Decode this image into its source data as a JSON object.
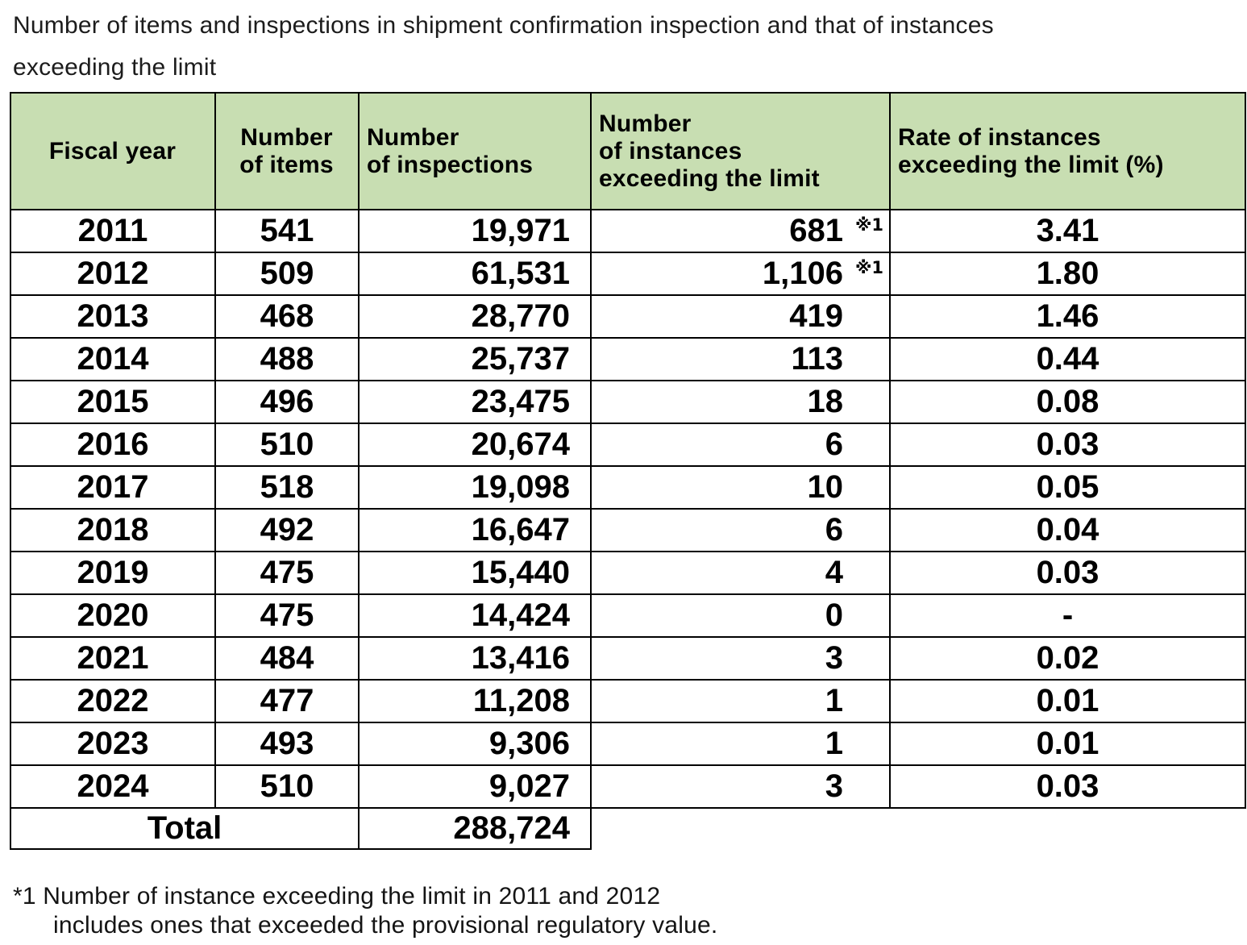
{
  "title": {
    "lines": [
      "Number of items and inspections in shipment confirmation inspection and that of instances",
      "exceeding the limit"
    ]
  },
  "table": {
    "columns": [
      "Fiscal year",
      "Number\nof items",
      "Number\nof inspections",
      "Number\nof instances\nexceeding the limit",
      "Rate of instances\nexceeding the limit (%)"
    ],
    "rows": [
      {
        "fiscal_year": "2011",
        "items": "541",
        "inspections": "19,971",
        "instances": "681",
        "note": "※1",
        "rate": "3.41"
      },
      {
        "fiscal_year": "2012",
        "items": "509",
        "inspections": "61,531",
        "instances": "1,106",
        "note": "※1",
        "rate": "1.80"
      },
      {
        "fiscal_year": "2013",
        "items": "468",
        "inspections": "28,770",
        "instances": "419",
        "note": "",
        "rate": "1.46"
      },
      {
        "fiscal_year": "2014",
        "items": "488",
        "inspections": "25,737",
        "instances": "113",
        "note": "",
        "rate": "0.44"
      },
      {
        "fiscal_year": "2015",
        "items": "496",
        "inspections": "23,475",
        "instances": "18",
        "note": "",
        "rate": "0.08"
      },
      {
        "fiscal_year": "2016",
        "items": "510",
        "inspections": "20,674",
        "instances": "6",
        "note": "",
        "rate": "0.03"
      },
      {
        "fiscal_year": "2017",
        "items": "518",
        "inspections": "19,098",
        "instances": "10",
        "note": "",
        "rate": "0.05"
      },
      {
        "fiscal_year": "2018",
        "items": "492",
        "inspections": "16,647",
        "instances": "6",
        "note": "",
        "rate": "0.04"
      },
      {
        "fiscal_year": "2019",
        "items": "475",
        "inspections": "15,440",
        "instances": "4",
        "note": "",
        "rate": "0.03"
      },
      {
        "fiscal_year": "2020",
        "items": "475",
        "inspections": "14,424",
        "instances": "0",
        "note": "",
        "rate": "-"
      },
      {
        "fiscal_year": "2021",
        "items": "484",
        "inspections": "13,416",
        "instances": "3",
        "note": "",
        "rate": "0.02"
      },
      {
        "fiscal_year": "2022",
        "items": "477",
        "inspections": "11,208",
        "instances": "1",
        "note": "",
        "rate": "0.01"
      },
      {
        "fiscal_year": "2023",
        "items": "493",
        "inspections": "9,306",
        "instances": "1",
        "note": "",
        "rate": "0.01"
      },
      {
        "fiscal_year": "2024",
        "items": "510",
        "inspections": "9,027",
        "instances": "3",
        "note": "",
        "rate": "0.03"
      }
    ],
    "total": {
      "label": "Total",
      "inspections": "288,724"
    }
  },
  "footnote": {
    "lines": [
      "*1 Number of instance exceeding the limit in 2011 and 2012",
      "includes ones that exceeded the provisional regulatory value."
    ]
  },
  "colors": {
    "header_bg": "#c8deb2",
    "border": "#000000",
    "text": "#000000"
  }
}
